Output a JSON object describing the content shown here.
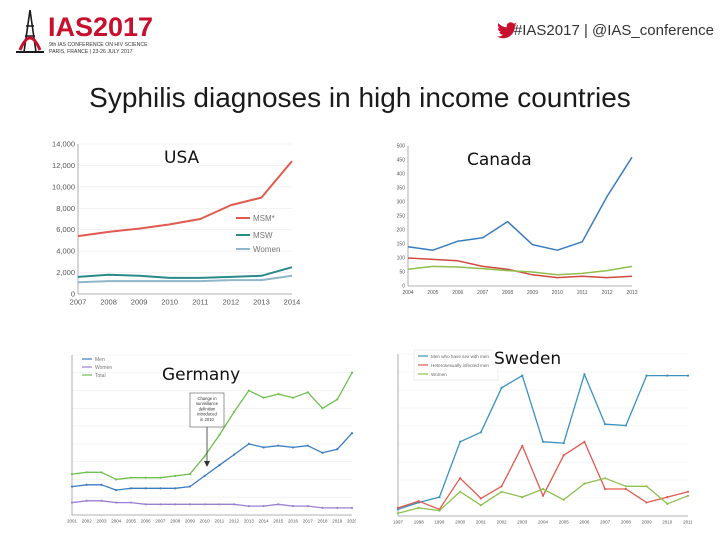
{
  "header": {
    "logo_text": "IAS2017",
    "logo_subline1": "9th IAS CONFERENCE ON HIV SCIENCE",
    "logo_subline2": "PARIS, FRANCE | 23-26 JULY 2017",
    "hashtag": "#IAS2017 | @IAS_conference",
    "brand_color": "#c8102e"
  },
  "slide": {
    "title": "Syphilis diagnoses in high income countries"
  },
  "chart_data": [
    {
      "type": "line",
      "panel_label": "USA",
      "x": [
        "2007",
        "2008",
        "2009",
        "2010",
        "2011",
        "2012",
        "2013",
        "2014"
      ],
      "y_ticks": [
        "0",
        "2,000",
        "4,000",
        "6,000",
        "8,000",
        "10,000",
        "12,000",
        "14,000"
      ],
      "ylim": [
        0,
        14000
      ],
      "series": [
        {
          "name": "MSM*",
          "color": "#e05a4f",
          "values": [
            5400,
            5800,
            6100,
            6500,
            7000,
            8300,
            9000,
            12400
          ]
        },
        {
          "name": "MSW",
          "color": "#2a8a8a",
          "values": [
            1600,
            1800,
            1700,
            1500,
            1500,
            1600,
            1700,
            2500
          ]
        },
        {
          "name": "Women",
          "color": "#8fb7c9",
          "values": [
            1100,
            1200,
            1200,
            1200,
            1200,
            1300,
            1300,
            1700
          ]
        }
      ]
    },
    {
      "type": "line",
      "panel_label": "Canada",
      "x": [
        "2004",
        "2005",
        "2006",
        "2007",
        "2008",
        "2009",
        "2010",
        "2011",
        "2012",
        "2013"
      ],
      "y_ticks": [
        "0",
        "50",
        "100",
        "150",
        "200",
        "250",
        "300",
        "350",
        "400",
        "450",
        "500"
      ],
      "ylim": [
        0,
        500
      ],
      "series": [
        {
          "name": "",
          "color": "#3a7cc0",
          "values": [
            140,
            128,
            160,
            172,
            230,
            148,
            128,
            158,
            320,
            460
          ]
        },
        {
          "name": "",
          "color": "#cf4a3c",
          "values": [
            100,
            95,
            90,
            70,
            60,
            40,
            30,
            35,
            30,
            35
          ]
        },
        {
          "name": "",
          "color": "#8fbf4e",
          "values": [
            60,
            70,
            68,
            62,
            55,
            50,
            40,
            45,
            55,
            70
          ]
        }
      ]
    },
    {
      "type": "line",
      "panel_label": "Germany",
      "annotation": "Change in surveillance definition introduced in 2010",
      "x": [
        "2001",
        "2002",
        "2003",
        "2004",
        "2005",
        "2006",
        "2007",
        "2008",
        "2009",
        "2010",
        "2011",
        "2012",
        "2013",
        "2014",
        "2015",
        "2016",
        "2017",
        "2018",
        "2019",
        "2020"
      ],
      "ylim": [
        0,
        9
      ],
      "series": [
        {
          "name": "Men",
          "color": "#3a7cc0",
          "values": [
            1.6,
            1.7,
            1.7,
            1.4,
            1.5,
            1.5,
            1.5,
            1.5,
            1.6,
            2.2,
            2.8,
            3.4,
            4.0,
            3.8,
            3.9,
            3.8,
            3.9,
            3.5,
            3.7,
            4.6
          ]
        },
        {
          "name": "Women",
          "color": "#9b7fd1",
          "values": [
            0.7,
            0.8,
            0.8,
            0.7,
            0.7,
            0.6,
            0.6,
            0.6,
            0.6,
            0.6,
            0.6,
            0.6,
            0.5,
            0.5,
            0.6,
            0.5,
            0.5,
            0.4,
            0.4,
            0.4
          ]
        },
        {
          "name": "Total",
          "color": "#6fbf4e",
          "values": [
            2.3,
            2.4,
            2.4,
            2.0,
            2.1,
            2.1,
            2.1,
            2.2,
            2.3,
            3.3,
            4.5,
            5.8,
            7.0,
            6.6,
            6.8,
            6.6,
            6.9,
            6.0,
            6.5,
            8.0
          ]
        }
      ]
    },
    {
      "type": "line",
      "panel_label": "Sweden",
      "x": [
        "1997",
        "1998",
        "1999",
        "2000",
        "2001",
        "2002",
        "2003",
        "2004",
        "2005",
        "2006",
        "2007",
        "2008",
        "2009",
        "2010",
        "2011"
      ],
      "ylim": [
        0,
        120
      ],
      "legend_position": "top",
      "series": [
        {
          "name": "Men who have sex with men",
          "color": "#3a92c0",
          "values": [
            5,
            10,
            14,
            55,
            62,
            95,
            104,
            55,
            54,
            105,
            68,
            67,
            104,
            104,
            104
          ]
        },
        {
          "name": "Heterosexually infected men",
          "color": "#e05a4f",
          "values": [
            6,
            11,
            5,
            28,
            13,
            22,
            52,
            15,
            45,
            55,
            20,
            20,
            10,
            14,
            18
          ]
        },
        {
          "name": "Women",
          "color": "#8fbf4e",
          "values": [
            2,
            6,
            4,
            18,
            8,
            18,
            14,
            20,
            12,
            24,
            28,
            22,
            22,
            9,
            15
          ]
        }
      ]
    }
  ]
}
